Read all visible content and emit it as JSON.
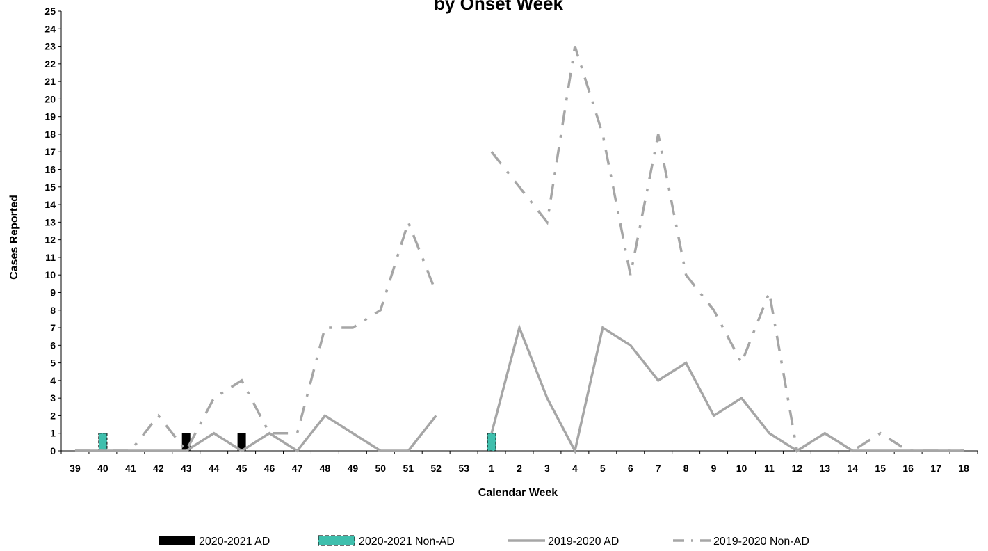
{
  "chart_data": {
    "type": "line",
    "title": "by Onset Week",
    "xlabel": "Calendar Week",
    "ylabel": "Cases Reported",
    "ylim": [
      0,
      25
    ],
    "ytick_step": 1,
    "grid": false,
    "legend_position": "bottom",
    "categories": [
      "39",
      "40",
      "41",
      "42",
      "43",
      "44",
      "45",
      "46",
      "47",
      "48",
      "49",
      "50",
      "51",
      "52",
      "53",
      "1",
      "2",
      "3",
      "4",
      "5",
      "6",
      "7",
      "8",
      "9",
      "10",
      "11",
      "12",
      "13",
      "14",
      "15",
      "16",
      "17",
      "18"
    ],
    "series": [
      {
        "name": "2020-2021 AD",
        "kind": "bar",
        "color": "#000000",
        "values": [
          0,
          0,
          0,
          0,
          1,
          0,
          1,
          0,
          0,
          0,
          0,
          0,
          0,
          0,
          null,
          0,
          0,
          0,
          0,
          0,
          0,
          0,
          0,
          0,
          0,
          0,
          0,
          0,
          0,
          0,
          0,
          0,
          0
        ]
      },
      {
        "name": "2020-2021 Non-AD",
        "kind": "bar",
        "color": "#3fbfad",
        "values": [
          0,
          1,
          0,
          0,
          0,
          0,
          0,
          0,
          0,
          0,
          0,
          0,
          0,
          0,
          null,
          1,
          0,
          0,
          0,
          0,
          0,
          0,
          0,
          0,
          0,
          0,
          0,
          0,
          0,
          0,
          0,
          0,
          0
        ]
      },
      {
        "name": "2019-2020 AD",
        "kind": "line",
        "color": "#a6a6a6",
        "style": "solid",
        "values": [
          0,
          0,
          0,
          0,
          0,
          1,
          0,
          1,
          0,
          2,
          1,
          0,
          0,
          2,
          null,
          1,
          7,
          3,
          0,
          7,
          6,
          4,
          5,
          2,
          3,
          1,
          0,
          1,
          0,
          0,
          0,
          0,
          0
        ]
      },
      {
        "name": "2019-2020 Non-AD",
        "kind": "line",
        "color": "#a6a6a6",
        "style": "dashdot",
        "values": [
          0,
          0,
          0,
          2,
          0,
          3,
          4,
          1,
          1,
          7,
          7,
          8,
          13,
          9,
          null,
          17,
          15,
          13,
          23,
          18,
          10,
          18,
          10,
          8,
          5,
          9,
          0,
          1,
          0,
          1,
          0,
          0,
          0
        ]
      }
    ]
  }
}
